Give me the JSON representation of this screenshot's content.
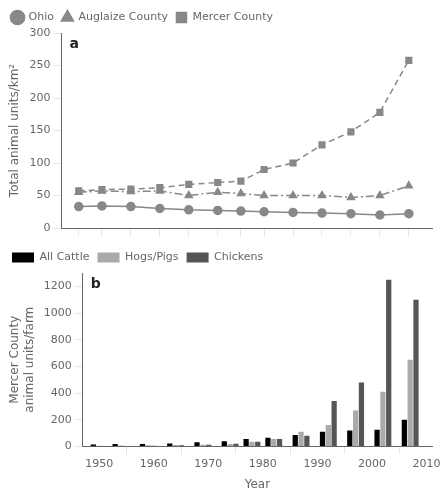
{
  "chart_data": [
    {
      "type": "line",
      "annotations": [
        "a"
      ],
      "y_label": "Total animal units/km²",
      "x": [
        1950,
        1954,
        1959,
        1964,
        1969,
        1974,
        1978,
        1982,
        1987,
        1992,
        1997,
        2002,
        2007
      ],
      "series": [
        {
          "name": "Ohio",
          "color": "#888888",
          "marker": "circle",
          "line_style": "solid",
          "values": [
            33,
            34,
            33,
            30,
            28,
            27,
            26,
            25,
            24,
            23,
            22,
            20,
            22
          ]
        },
        {
          "name": "Auglaize County",
          "color": "#888888",
          "marker": "triangle",
          "line_style": "dashdot",
          "values": [
            55,
            57,
            56,
            57,
            50,
            55,
            53,
            50,
            50,
            50,
            47,
            50,
            65
          ]
        },
        {
          "name": "Mercer County",
          "color": "#888888",
          "marker": "square",
          "line_style": "dashed",
          "values": [
            57,
            59,
            60,
            62,
            67,
            70,
            72,
            90,
            100,
            128,
            148,
            178,
            258
          ]
        }
      ],
      "xlim": [
        1947,
        2011
      ],
      "xticks": [
        1950,
        1954,
        1959,
        1964,
        1969,
        1974,
        1978,
        1982,
        1987,
        1992,
        1997,
        2002,
        2007
      ],
      "ylim": [
        0,
        300
      ],
      "yticks": [
        0,
        50,
        100,
        150,
        200,
        250,
        300
      ],
      "tick_labels": "y",
      "grid": false,
      "legend": "upper left"
    },
    {
      "type": "bar",
      "annotations": [
        "b"
      ],
      "x_label": "Year",
      "y_label": "Mercer County\nanimal units/farm",
      "x": [
        1950,
        1954,
        1959,
        1964,
        1969,
        1974,
        1978,
        1982,
        1987,
        1992,
        1997,
        2002,
        2007
      ],
      "series": [
        {
          "name": "All Cattle",
          "color": "#000000",
          "values": [
            15,
            18,
            18,
            22,
            32,
            38,
            55,
            65,
            85,
            110,
            120,
            125,
            200
          ]
        },
        {
          "name": "Hogs/Pigs",
          "color": "#aaaaaa",
          "values": [
            5,
            7,
            8,
            10,
            12,
            18,
            35,
            55,
            110,
            160,
            270,
            410,
            650
          ]
        },
        {
          "name": "Chickens",
          "color": "#555555",
          "values": [
            2,
            3,
            5,
            8,
            12,
            20,
            35,
            55,
            80,
            340,
            480,
            1250,
            1100
          ]
        }
      ],
      "xlim": [
        1947,
        2011
      ],
      "xticks": [
        1950,
        1960,
        1970,
        1980,
        1990,
        2000,
        2010
      ],
      "ylim": [
        0,
        1300
      ],
      "yticks": [
        0,
        200,
        400,
        600,
        800,
        1000,
        1200
      ],
      "grid": false,
      "legend": "upper left"
    }
  ]
}
